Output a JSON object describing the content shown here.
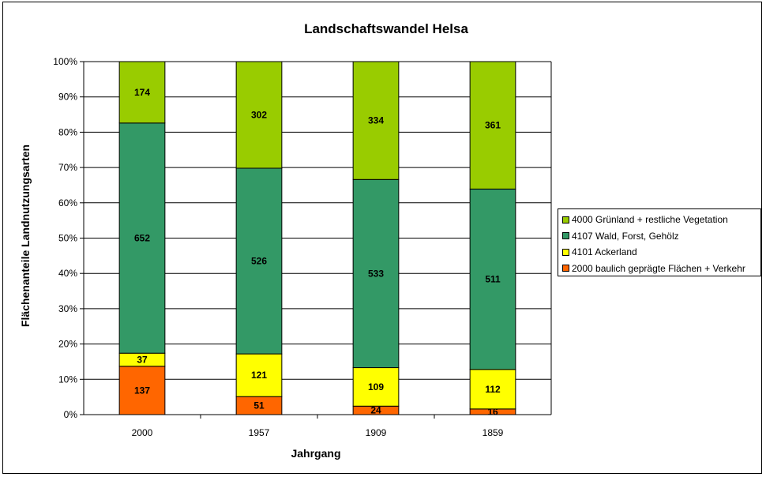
{
  "chart_data": {
    "type": "bar",
    "stacked": "percent",
    "title": "Landschaftswandel Helsa",
    "xlabel": "Jahrgang",
    "ylabel": "Flächenanteile Landnutzungsarten",
    "ylim": [
      0,
      100
    ],
    "yticks": [
      "0%",
      "10%",
      "20%",
      "30%",
      "40%",
      "50%",
      "60%",
      "70%",
      "80%",
      "90%",
      "100%"
    ],
    "categories": [
      "2000",
      "1957",
      "1909",
      "1859"
    ],
    "grid": true,
    "legend_position": "right",
    "series": [
      {
        "name": "2000 baulich geprägte Flächen + Verkehr",
        "color": "#ff6600",
        "values": [
          137,
          51,
          24,
          16
        ]
      },
      {
        "name": "4101 Ackerland",
        "color": "#ffff00",
        "values": [
          37,
          121,
          109,
          112
        ]
      },
      {
        "name": "4107 Wald, Forst, Gehölz",
        "color": "#339966",
        "values": [
          652,
          526,
          533,
          511
        ]
      },
      {
        "name": "4000 Grünland + restliche Vegetation",
        "color": "#99cc00",
        "values": [
          174,
          302,
          334,
          361
        ]
      }
    ]
  }
}
